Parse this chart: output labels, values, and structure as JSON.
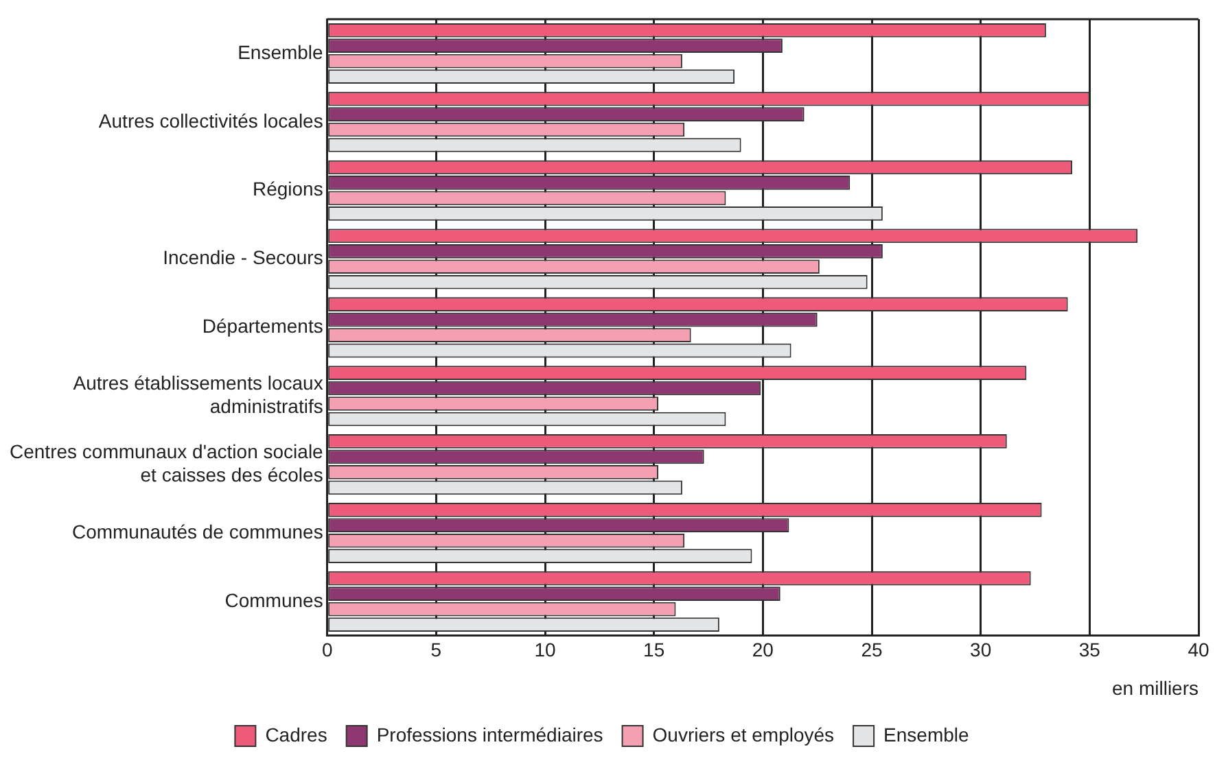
{
  "chart_data": {
    "type": "bar",
    "orientation": "horizontal",
    "xlabel": "en milliers",
    "categories": [
      "Ensemble",
      "Autres collectivités locales",
      "Régions",
      "Incendie - Secours",
      "Départements",
      "Autres établissements locaux administratifs",
      "Centres communaux d'action sociale et caisses des écoles",
      "Communautés de communes",
      "Communes"
    ],
    "series": [
      {
        "name": "Cadres",
        "color": "#ee5a7a",
        "values": [
          33.0,
          35.0,
          34.2,
          37.2,
          34.0,
          32.1,
          31.2,
          32.8,
          32.3
        ]
      },
      {
        "name": "Professions intermédiaires",
        "color": "#8e3872",
        "values": [
          20.9,
          21.9,
          24.0,
          25.5,
          22.5,
          19.9,
          17.3,
          21.2,
          20.8
        ]
      },
      {
        "name": "Ouvriers et employés",
        "color": "#f49fb2",
        "values": [
          16.3,
          16.4,
          18.3,
          22.6,
          16.7,
          15.2,
          15.2,
          16.4,
          16.0
        ]
      },
      {
        "name": "Ensemble",
        "color": "#e4e5e7",
        "values": [
          18.7,
          19.0,
          25.5,
          24.8,
          21.3,
          18.3,
          16.3,
          19.5,
          18.0
        ]
      }
    ],
    "xlim": [
      0,
      40
    ],
    "xticks": [
      0,
      5,
      10,
      15,
      20,
      25,
      30,
      35,
      40
    ],
    "grid": "x",
    "legend": "bottom"
  }
}
